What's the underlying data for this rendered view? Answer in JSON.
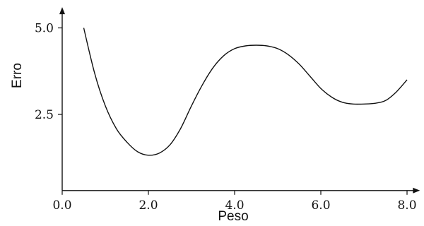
{
  "chart_data": {
    "type": "line",
    "title": "",
    "xlabel": "Peso",
    "ylabel": "Erro",
    "xlim": [
      0,
      8.3
    ],
    "ylim": [
      0.3,
      5.6
    ],
    "grid": false,
    "x_ticks": [
      {
        "value": 0,
        "label": "0.0"
      },
      {
        "value": 2,
        "label": "2.0"
      },
      {
        "value": 4,
        "label": "4.0"
      },
      {
        "value": 6,
        "label": "6.0"
      },
      {
        "value": 8,
        "label": "8.0"
      }
    ],
    "y_ticks": [
      {
        "value": 2.5,
        "label": "2.5"
      },
      {
        "value": 5.0,
        "label": "5.0"
      }
    ],
    "series": [
      {
        "x": [
          0.5,
          0.75,
          1.0,
          1.25,
          1.5,
          1.75,
          2.0,
          2.25,
          2.5,
          2.75,
          3.0,
          3.25,
          3.5,
          3.75,
          4.0,
          4.25,
          4.5,
          4.75,
          5.0,
          5.25,
          5.5,
          5.75,
          6.0,
          6.25,
          6.5,
          6.75,
          7.0,
          7.25,
          7.5,
          7.75,
          8.0
        ],
        "y": [
          5.0,
          3.7,
          2.75,
          2.1,
          1.7,
          1.42,
          1.32,
          1.38,
          1.62,
          2.1,
          2.75,
          3.35,
          3.85,
          4.2,
          4.4,
          4.48,
          4.5,
          4.48,
          4.4,
          4.22,
          3.95,
          3.6,
          3.25,
          3.0,
          2.85,
          2.8,
          2.8,
          2.82,
          2.9,
          3.15,
          3.5
        ]
      }
    ]
  }
}
